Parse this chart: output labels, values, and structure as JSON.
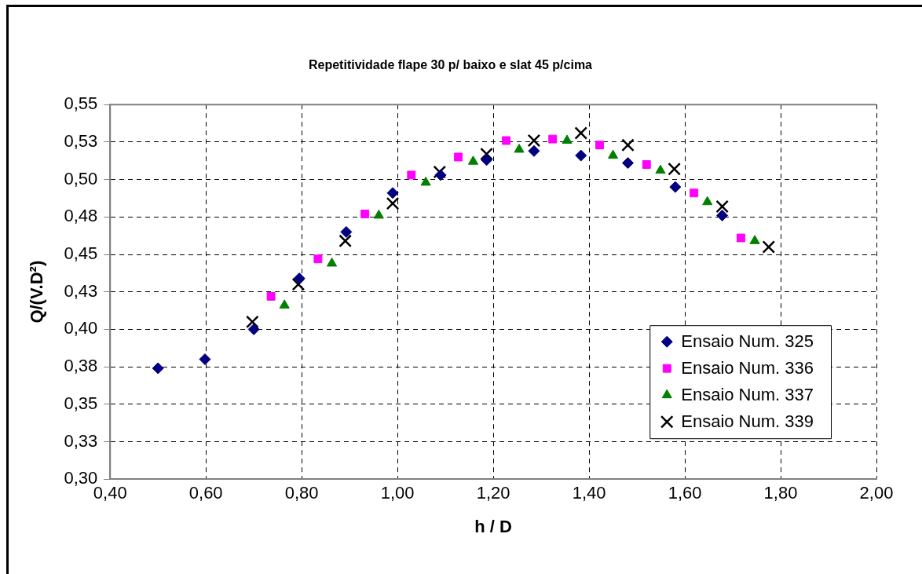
{
  "chart_data": {
    "type": "scatter",
    "title": "Repetitividade flape 30 p/ baixo e slat 45 p/cima",
    "xlabel": "h / D",
    "ylabel": "Q/(V.D²)",
    "xlim": [
      0.4,
      2.0
    ],
    "xticks": [
      {
        "value": 0.4,
        "label": "0,40"
      },
      {
        "value": 0.6,
        "label": "0,60"
      },
      {
        "value": 0.8,
        "label": "0,80"
      },
      {
        "value": 1.0,
        "label": "1,00"
      },
      {
        "value": 1.2,
        "label": "1,20"
      },
      {
        "value": 1.4,
        "label": "1,40"
      },
      {
        "value": 1.6,
        "label": "1,60"
      },
      {
        "value": 1.8,
        "label": "1,80"
      },
      {
        "value": 2.0,
        "label": "2,00"
      }
    ],
    "ylim": [
      0.3,
      0.55
    ],
    "yticks": [
      {
        "value": 0.3,
        "label": "0,30"
      },
      {
        "value": 0.325,
        "label": "0,33"
      },
      {
        "value": 0.35,
        "label": "0,35"
      },
      {
        "value": 0.375,
        "label": "0,38"
      },
      {
        "value": 0.4,
        "label": "0,40"
      },
      {
        "value": 0.425,
        "label": "0,43"
      },
      {
        "value": 0.45,
        "label": "0,45"
      },
      {
        "value": 0.475,
        "label": "0,48"
      },
      {
        "value": 0.5,
        "label": "0,50"
      },
      {
        "value": 0.525,
        "label": "0,53"
      },
      {
        "value": 0.55,
        "label": "0,55"
      }
    ],
    "grid": true,
    "legend": "bottom right",
    "series": [
      {
        "name": "Ensaio Num. 325",
        "color": "#000080",
        "marker": "diamond",
        "x": [
          0.5,
          0.598,
          0.7,
          0.795,
          0.893,
          0.99,
          1.09,
          1.186,
          1.285,
          1.383,
          1.481,
          1.58,
          1.678
        ],
        "values": [
          0.374,
          0.38,
          0.4,
          0.434,
          0.465,
          0.491,
          0.503,
          0.513,
          0.519,
          0.516,
          0.511,
          0.495,
          0.476
        ]
      },
      {
        "name": "Ensaio Num. 336",
        "color": "#ff00ff",
        "marker": "square",
        "x": [
          0.736,
          0.834,
          0.932,
          1.029,
          1.127,
          1.227,
          1.324,
          1.422,
          1.52,
          1.619,
          1.717
        ],
        "values": [
          0.422,
          0.447,
          0.477,
          0.503,
          0.515,
          0.526,
          0.527,
          0.523,
          0.51,
          0.491,
          0.461
        ]
      },
      {
        "name": "Ensaio Num. 337",
        "color": "#008000",
        "marker": "triangle",
        "x": [
          0.764,
          0.863,
          0.961,
          1.059,
          1.158,
          1.254,
          1.354,
          1.45,
          1.549,
          1.647,
          1.746
        ],
        "values": [
          0.416,
          0.444,
          0.476,
          0.498,
          0.512,
          0.52,
          0.526,
          0.516,
          0.506,
          0.485,
          0.459
        ]
      },
      {
        "name": "Ensaio Num. 339",
        "color": "#000000",
        "marker": "cross",
        "x": [
          0.697,
          0.793,
          0.891,
          0.99,
          1.088,
          1.186,
          1.285,
          1.383,
          1.481,
          1.578,
          1.678,
          1.775
        ],
        "values": [
          0.405,
          0.43,
          0.459,
          0.484,
          0.505,
          0.517,
          0.526,
          0.531,
          0.523,
          0.507,
          0.482,
          0.455
        ]
      }
    ]
  }
}
